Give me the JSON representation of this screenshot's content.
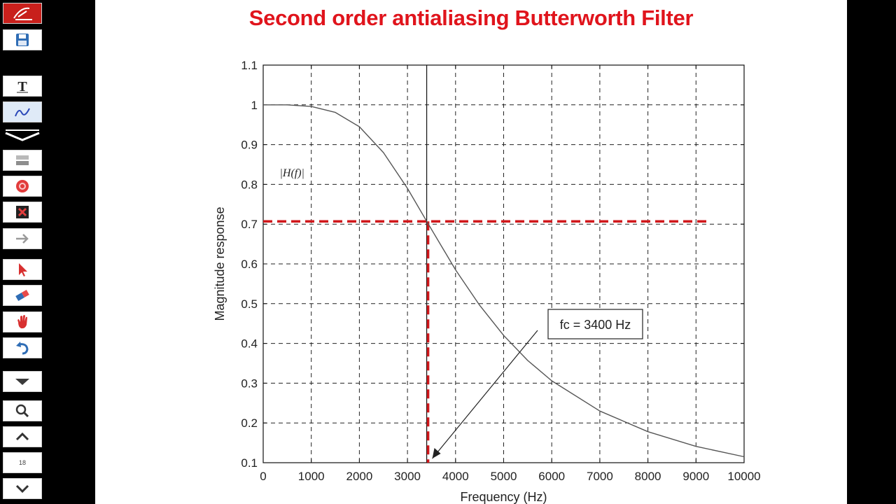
{
  "toolbar": {
    "buttons": [
      {
        "name": "app-logo",
        "icon": "pen-logo-icon"
      },
      {
        "name": "save",
        "icon": "floppy-disk-icon"
      },
      {
        "name": "text-tool",
        "icon": "text-t-icon"
      },
      {
        "name": "pen-tool",
        "icon": "freehand-pen-icon"
      },
      {
        "name": "collapse",
        "icon": "chevron-collapse-icon"
      },
      {
        "name": "highlighter",
        "icon": "highlighter-icon"
      },
      {
        "name": "record",
        "icon": "record-circle-icon"
      },
      {
        "name": "clear",
        "icon": "close-x-icon"
      },
      {
        "name": "next-arrow",
        "icon": "arrow-right-icon"
      },
      {
        "name": "pointer",
        "icon": "cursor-pointer-icon"
      },
      {
        "name": "eraser",
        "icon": "eraser-icon"
      },
      {
        "name": "hand",
        "icon": "hand-icon"
      },
      {
        "name": "undo",
        "icon": "undo-icon"
      },
      {
        "name": "dropdown",
        "icon": "caret-down-icon"
      },
      {
        "name": "zoom",
        "icon": "magnifier-icon"
      },
      {
        "name": "page-up",
        "icon": "chevron-up-icon"
      },
      {
        "name": "page-down",
        "icon": "chevron-down-icon"
      }
    ],
    "page_number": "18"
  },
  "slide": {
    "title": "Second order antialiasing Butterworth Filter"
  },
  "chart_data": {
    "type": "line",
    "title": "Second order antialiasing Butterworth Filter",
    "xlabel": "Frequency (Hz)",
    "ylabel": "Magnitude response",
    "xlim": [
      0,
      10000
    ],
    "ylim": [
      0.1,
      1.1
    ],
    "xticks": [
      0,
      1000,
      2000,
      3000,
      4000,
      5000,
      6000,
      7000,
      8000,
      9000,
      10000
    ],
    "yticks": [
      0.1,
      0.2,
      0.3,
      0.4,
      0.5,
      0.6,
      0.7,
      0.8,
      0.9,
      1,
      1.1
    ],
    "grid": true,
    "series": [
      {
        "name": "|H(f)|",
        "color": "#555555",
        "x": [
          0,
          500,
          1000,
          1500,
          2000,
          2500,
          3000,
          3400,
          4000,
          4500,
          5000,
          5500,
          6000,
          7000,
          8000,
          9000,
          10000
        ],
        "y": [
          1.0,
          1.0,
          0.996,
          0.981,
          0.945,
          0.88,
          0.79,
          0.707,
          0.585,
          0.496,
          0.42,
          0.357,
          0.306,
          0.23,
          0.178,
          0.141,
          0.115
        ]
      }
    ],
    "annotations": {
      "curve_label": "|H(f)|",
      "fc_label": "fc = 3400 Hz",
      "fc_value": 3400,
      "level_value": 0.707,
      "marker_color": "#d0181c",
      "vertical_line_x": 3400
    }
  }
}
